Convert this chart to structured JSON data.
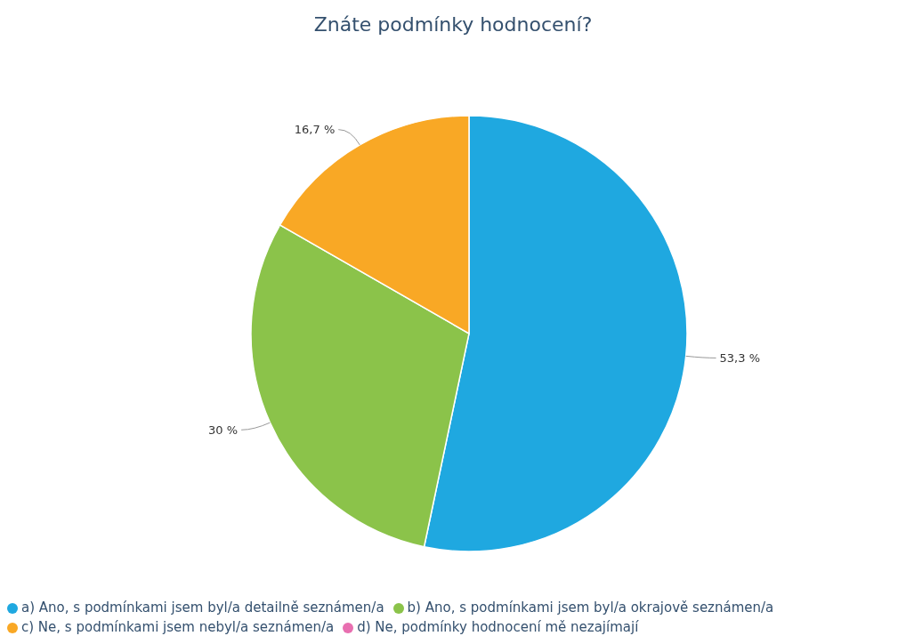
{
  "chart_data": {
    "type": "pie",
    "title": "Znáte podmínky hodnocení?",
    "categories": [
      "a) Ano, s podmínkami jsem byl/a detailně seznámen/a",
      "b) Ano, s podmínkami jsem byl/a okrajově seznámen/a",
      "c) Ne, s podmínkami jsem nebyl/a seznámen/a",
      "d) Ne, podmínky hodnocení mě nezajímají"
    ],
    "values": [
      53.3,
      30,
      16.7,
      0
    ],
    "value_labels": [
      "53,3 %",
      "30 %",
      "16,7 %",
      null
    ],
    "colors": [
      "#1fa8e0",
      "#8bc34a",
      "#f9a825",
      "#e86fb0"
    ],
    "legend": "bottom left"
  }
}
